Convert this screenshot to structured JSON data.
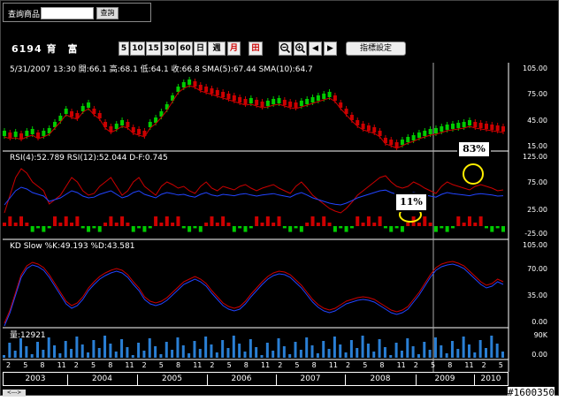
{
  "query": {
    "label": "查詢商品",
    "input_value": "",
    "button_label": "查詢"
  },
  "stock": {
    "code": "6194",
    "name": "育　富"
  },
  "timeframes": [
    "5",
    "10",
    "15",
    "30",
    "60",
    "日",
    "週",
    "月",
    "田"
  ],
  "tool_buttons": {
    "zoom_out": "zoom-out",
    "zoom_in": "zoom-in",
    "prev": "◀",
    "next": "▶"
  },
  "indicator_button": "指標設定",
  "price_panel": {
    "info": "5/31/2007 13:30  開:66.1  高:68.1  低:64.1  收:66.8  SMA(5):67.44  SMA(10):64.7",
    "axis": [
      "105.00",
      "75.00",
      "45.00",
      "15.00"
    ]
  },
  "rsi_panel": {
    "info": "RSI(4):52.789  RSI(12):52.044  D-F:0.745",
    "axis": [
      "125.00",
      "75.00",
      "25.00",
      "-25.00"
    ]
  },
  "kd_panel": {
    "info": "KD Slow  %K:49.193  %D:43.581",
    "axis": [
      "105.00",
      "70.00",
      "35.00",
      "0.00"
    ]
  },
  "volume_panel": {
    "info": "量:12921",
    "axis": [
      "90K",
      "0.00"
    ]
  },
  "month_ticks": [
    "2",
    "5",
    "8",
    "11",
    "2",
    "5",
    "8",
    "11",
    "2",
    "5",
    "8",
    "11",
    "2",
    "5",
    "8",
    "11",
    "2",
    "5",
    "8",
    "11",
    "2",
    "5",
    "8",
    "11",
    "2",
    "5",
    "8",
    "11",
    "2",
    "5"
  ],
  "years": [
    "2003",
    "2004",
    "2005",
    "2006",
    "2007",
    "2008",
    "2009",
    "2010"
  ],
  "annotations": {
    "low": "11%",
    "high": "83%"
  },
  "scroll_label": "<--->",
  "image_id": "#1600350",
  "colors": {
    "up": "#00cc00",
    "down": "#cc0000",
    "rsi_short": "#cc0000",
    "rsi_long": "#2244ff",
    "volume": "#2a7fd4",
    "highlight": "#ffee00"
  }
}
